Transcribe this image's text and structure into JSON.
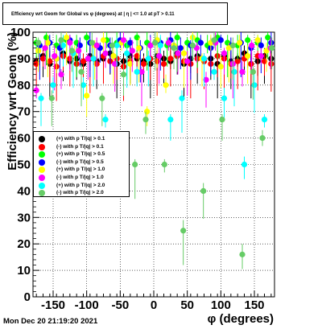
{
  "title": "Efficiency wrt Geom for Global vs φ (degrees) at | η | <= 1.0 at pT > 0.11",
  "footer": "Mon Dec 20 21:19:20 2021",
  "colors": {
    "black": "#000000",
    "red": "#ff0000",
    "green": "#00ff00",
    "blue": "#0000ff",
    "yellow": "#ffff00",
    "magenta": "#ff00ff",
    "cyan": "#00ffff",
    "lightgreen": "#66cc66"
  },
  "chart_data": {
    "type": "scatter",
    "title": "Efficiency wrt Geom for Global vs φ (degrees) at | η | <= 1.0 at pT > 0.11",
    "xlabel": "φ (degrees)",
    "ylabel": "Efficiency wrt Geom (%)",
    "xlim": [
      -180,
      180
    ],
    "ylim": [
      0,
      100
    ],
    "xticks": [
      -150,
      -100,
      -50,
      0,
      50,
      100,
      150
    ],
    "yticks": [
      0,
      10,
      20,
      30,
      40,
      50,
      60,
      70,
      80,
      90,
      100
    ],
    "grid": true,
    "legend_position": "left",
    "series": [
      {
        "name": "(+) with p T/|q| > 0.1",
        "color": "#000000",
        "x": [
          -175,
          -165,
          -155,
          -145,
          -135,
          -125,
          -115,
          -105,
          -95,
          -85,
          -75,
          -65,
          -55,
          -45,
          -35,
          -25,
          -15,
          -5,
          5,
          15,
          25,
          35,
          45,
          55,
          65,
          75,
          85,
          95,
          105,
          115,
          125,
          135,
          145,
          155,
          165,
          175
        ],
        "y": [
          89,
          91,
          88,
          90,
          92,
          89,
          90,
          88,
          91,
          89,
          90,
          92,
          88,
          89,
          91,
          90,
          89,
          88,
          91,
          90,
          89,
          92,
          88,
          90,
          91,
          89,
          90,
          88,
          91,
          89,
          90,
          92,
          88,
          89,
          91,
          90
        ]
      },
      {
        "name": "(-) with p T/|q| > 0.1",
        "color": "#ff0000",
        "x": [
          -175,
          -165,
          -155,
          -145,
          -135,
          -125,
          -115,
          -105,
          -95,
          -85,
          -75,
          -65,
          -55,
          -45,
          -35,
          -25,
          -15,
          -5,
          5,
          15,
          25,
          35,
          45,
          55,
          65,
          75,
          85,
          95,
          105,
          115,
          125,
          135,
          145,
          155,
          165,
          175
        ],
        "y": [
          88,
          90,
          89,
          87,
          91,
          90,
          88,
          89,
          90,
          88,
          91,
          89,
          90,
          87,
          89,
          91,
          88,
          90,
          89,
          88,
          90,
          91,
          89,
          88,
          90,
          89,
          88,
          91,
          90,
          88,
          89,
          90,
          88,
          91,
          89,
          88
        ]
      },
      {
        "name": "(+) with p T/|q| > 0.5",
        "color": "#00ff00",
        "x": [
          -175,
          -160,
          -145,
          -130,
          -115,
          -100,
          -85,
          -70,
          -55,
          -40,
          -25,
          -10,
          5,
          20,
          35,
          50,
          65,
          80,
          95,
          110,
          125,
          140,
          155,
          170
        ],
        "y": [
          96,
          98,
          95,
          97,
          96,
          98,
          95,
          97,
          96,
          95,
          98,
          96,
          97,
          95,
          98,
          96,
          97,
          95,
          98,
          96,
          95,
          97,
          96,
          98
        ]
      },
      {
        "name": "(-) with p T/|q| > 0.5",
        "color": "#0000ff",
        "x": [
          -170,
          -155,
          -140,
          -125,
          -110,
          -95,
          -80,
          -65,
          -50,
          -35,
          -20,
          -5,
          10,
          25,
          40,
          55,
          70,
          85,
          100,
          115,
          130,
          145,
          160,
          175
        ],
        "y": [
          95,
          96,
          94,
          97,
          95,
          96,
          94,
          95,
          97,
          96,
          94,
          95,
          96,
          97,
          94,
          95,
          96,
          94,
          97,
          95,
          96,
          94,
          95,
          96
        ]
      },
      {
        "name": "(+) with p T/|q| > 1.0",
        "color": "#ffff00",
        "x": [
          -172,
          -158,
          -145,
          -130,
          -118,
          -100,
          -88,
          -75,
          -60,
          -48,
          -35,
          -22,
          -10,
          5,
          18,
          30,
          45,
          58,
          72,
          85,
          100,
          112,
          128,
          140,
          155,
          168
        ],
        "y": [
          93,
          96,
          90,
          98,
          92,
          76,
          95,
          97,
          91,
          96,
          88,
          94,
          70,
          97,
          80,
          95,
          92,
          98,
          90,
          96,
          87,
          94,
          96,
          91,
          97,
          93
        ]
      },
      {
        "name": "(-) with p T/|q| > 1.0",
        "color": "#ff00ff",
        "x": [
          -175,
          -162,
          -148,
          -138,
          -125,
          -112,
          -98,
          -85,
          -72,
          -58,
          -45,
          -32,
          -18,
          -5,
          8,
          22,
          36,
          50,
          64,
          78,
          92,
          105,
          118,
          132,
          146,
          160,
          174
        ],
        "y": [
          78,
          94,
          91,
          84,
          96,
          93,
          90,
          95,
          92,
          88,
          97,
          93,
          85,
          95,
          91,
          96,
          92,
          89,
          94,
          82,
          96,
          92,
          88,
          85,
          95,
          91,
          94
        ]
      },
      {
        "name": "(+) with p T/|q| > 2.0",
        "color": "#00ffff",
        "x": [
          -168,
          -150,
          -135,
          -120,
          -105,
          -90,
          -72,
          -55,
          -40,
          -25,
          -8,
          10,
          25,
          42,
          58,
          75,
          90,
          105,
          120,
          135,
          150,
          165
        ],
        "y": [
          75,
          80,
          95,
          92,
          80,
          90,
          67,
          95,
          92,
          85,
          90,
          95,
          67,
          75,
          95,
          90,
          85,
          75,
          85,
          50,
          80,
          67
        ]
      },
      {
        "name": "(-) with p T/|q| > 2.0",
        "color": "#66cc66",
        "x": [
          -172,
          -152,
          -138,
          -122,
          -108,
          -92,
          -77,
          -62,
          -45,
          -28,
          -12,
          2,
          16,
          30,
          44,
          58,
          74,
          90,
          102,
          118,
          132,
          148,
          162,
          176
        ],
        "y": [
          96,
          75,
          97,
          93,
          85,
          96,
          75,
          95,
          84,
          50,
          67,
          96,
          50,
          94,
          25,
          95,
          40,
          97,
          67,
          95,
          16,
          85,
          60,
          94
        ]
      }
    ]
  }
}
